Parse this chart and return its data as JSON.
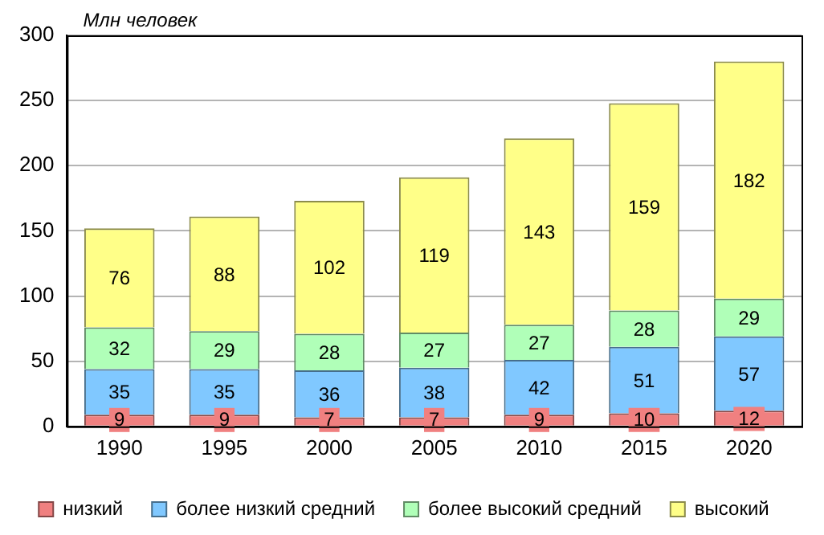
{
  "chart_data": {
    "type": "bar",
    "stacked": true,
    "ylabel": "Млн человек",
    "categories": [
      "1990",
      "1995",
      "2000",
      "2005",
      "2010",
      "2015",
      "2020"
    ],
    "series": [
      {
        "name": "низкий",
        "color": "#f08080",
        "values": [
          9,
          9,
          7,
          7,
          9,
          10,
          12
        ]
      },
      {
        "name": "более низкий средний",
        "color": "#80c8ff",
        "values": [
          35,
          35,
          36,
          38,
          42,
          51,
          57
        ]
      },
      {
        "name": "более высокий средний",
        "color": "#b0ffb8",
        "values": [
          32,
          29,
          28,
          27,
          27,
          28,
          29
        ]
      },
      {
        "name": "высокий",
        "color": "#ffff88",
        "values": [
          76,
          88,
          102,
          119,
          143,
          159,
          182
        ]
      }
    ],
    "ylim": [
      0,
      300
    ],
    "yticks": [
      0,
      50,
      100,
      150,
      200,
      250,
      300
    ],
    "grid": "y",
    "legend": "bottom",
    "data_labels": true
  }
}
